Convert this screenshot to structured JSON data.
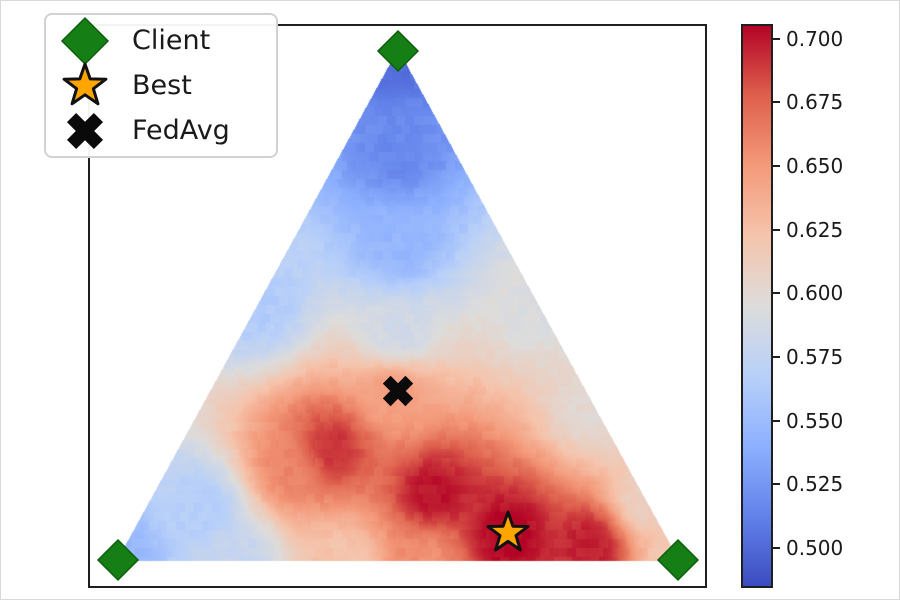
{
  "legend": {
    "items": [
      {
        "label": "Client",
        "icon": "diamond-icon",
        "color": "#157f15",
        "edge_color": "#0d5f0d"
      },
      {
        "label": "Best",
        "icon": "star-icon",
        "color": "#ffa500",
        "edge_color": "#111111"
      },
      {
        "label": "FedAvg",
        "icon": "x-icon",
        "color": "#0a0a0a",
        "edge_color": "#0a0a0a"
      }
    ]
  },
  "chart_data": {
    "type": "heatmap",
    "variant": "ternary-simplex-hexbin",
    "description": "Metric value (e.g. accuracy) over the 2-simplex of client mixing weights; clients at triangle vertices, FedAvg at the uniform-weight centroid, Best at the highest-value point.",
    "grid": false,
    "axis_ticks": "none",
    "colormap": {
      "name": "coolwarm",
      "stops": [
        {
          "t": 0.0,
          "rgb": [
            59,
            76,
            192
          ]
        },
        {
          "t": 0.125,
          "rgb": [
            98,
            130,
            234
          ]
        },
        {
          "t": 0.25,
          "rgb": [
            141,
            176,
            254
          ]
        },
        {
          "t": 0.375,
          "rgb": [
            184,
            208,
            249
          ]
        },
        {
          "t": 0.5,
          "rgb": [
            221,
            220,
            219
          ]
        },
        {
          "t": 0.625,
          "rgb": [
            245,
            196,
            172
          ]
        },
        {
          "t": 0.75,
          "rgb": [
            244,
            154,
            123
          ]
        },
        {
          "t": 0.875,
          "rgb": [
            222,
            96,
            77
          ]
        },
        {
          "t": 1.0,
          "rgb": [
            180,
            4,
            38
          ]
        }
      ]
    },
    "colorbar": {
      "position": "right",
      "vmin": 0.485,
      "vmax": 0.705,
      "tick_values": [
        0.7,
        0.675,
        0.65,
        0.625,
        0.6,
        0.575,
        0.55,
        0.525,
        0.5
      ],
      "tick_labels": [
        "0.700",
        "0.675",
        "0.650",
        "0.625",
        "0.600",
        "0.575",
        "0.550",
        "0.525",
        "0.500"
      ]
    },
    "triangle": {
      "vertices_axes_fraction": [
        [
          0.501,
          0.045
        ],
        [
          0.046,
          0.954
        ],
        [
          0.956,
          0.954
        ]
      ],
      "vertex_meaning": [
        "Client 1 weight = 1",
        "Client 2 weight = 1",
        "Client 3 weight = 1"
      ]
    },
    "markers": {
      "clients": {
        "label": "Client",
        "barycentric": [
          [
            1,
            0,
            0
          ],
          [
            0,
            1,
            0
          ],
          [
            0,
            0,
            1
          ]
        ]
      },
      "fedavg": {
        "label": "FedAvg",
        "barycentric": [
          0.3333,
          0.3333,
          0.3334
        ],
        "value_estimate": 0.648
      },
      "best": {
        "label": "Best",
        "barycentric": [
          0.054,
          0.276,
          0.67
        ],
        "value_estimate": 0.705
      }
    },
    "field_samples_barycentric": [
      [
        1.0,
        0.0,
        0.0,
        0.503
      ],
      [
        0.8,
        0.1,
        0.1,
        0.517
      ],
      [
        0.62,
        0.19,
        0.19,
        0.545
      ],
      [
        0.5,
        0.5,
        0.0,
        0.563
      ],
      [
        0.5,
        0.0,
        0.5,
        0.593
      ],
      [
        0.44,
        0.28,
        0.28,
        0.585
      ],
      [
        0.33,
        0.34,
        0.33,
        0.648
      ],
      [
        0.3,
        0.0,
        0.7,
        0.6
      ],
      [
        0.22,
        0.51,
        0.27,
        0.692
      ],
      [
        0.13,
        0.37,
        0.5,
        0.701
      ],
      [
        0.05,
        0.28,
        0.67,
        0.706
      ],
      [
        0.03,
        0.14,
        0.83,
        0.698
      ],
      [
        0.12,
        0.0,
        0.88,
        0.61
      ],
      [
        0.0,
        0.0,
        1.0,
        0.618
      ],
      [
        0.0,
        1.0,
        0.0,
        0.545
      ],
      [
        0.1,
        0.8,
        0.1,
        0.565
      ],
      [
        0.0,
        0.78,
        0.22,
        0.578
      ],
      [
        0.0,
        0.6,
        0.4,
        0.622
      ],
      [
        0.0,
        0.45,
        0.55,
        0.655
      ],
      [
        0.18,
        0.6,
        0.22,
        0.66
      ]
    ]
  }
}
